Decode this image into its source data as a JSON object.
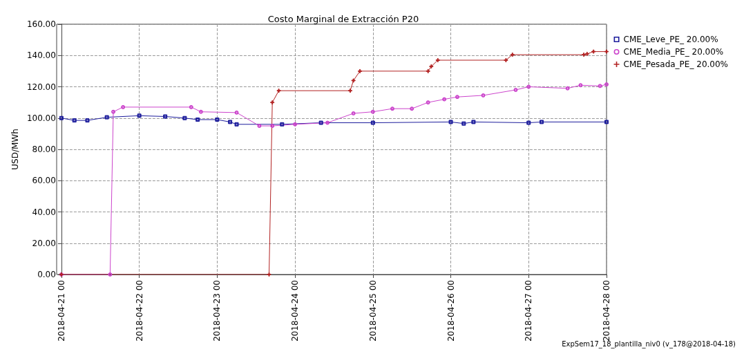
{
  "chart_data": {
    "type": "line",
    "title": "Costo Marginal de Extracción P20",
    "ylabel": "USD/MWh",
    "annotations": [
      "ExpSem17_18_plantilla_niv0 (v_178@2018-04-18)"
    ],
    "xlim": [
      "2018-04-21T00:00",
      "2018-04-28T00:00"
    ],
    "xticks": [
      {
        "value": "2018-04-21T00:00",
        "label": "2018-04-21 00"
      },
      {
        "value": "2018-04-22T00:00",
        "label": "2018-04-22 00"
      },
      {
        "value": "2018-04-23T00:00",
        "label": "2018-04-23 00"
      },
      {
        "value": "2018-04-24T00:00",
        "label": "2018-04-24 00"
      },
      {
        "value": "2018-04-25T00:00",
        "label": "2018-04-25 00"
      },
      {
        "value": "2018-04-26T00:00",
        "label": "2018-04-26 00"
      },
      {
        "value": "2018-04-27T00:00",
        "label": "2018-04-27 00"
      },
      {
        "value": "2018-04-28T00:00",
        "label": "2018-04-28 00"
      }
    ],
    "ylim": [
      0,
      160
    ],
    "yticks": [
      {
        "value": 0,
        "label": "0.00"
      },
      {
        "value": 20,
        "label": "20.00"
      },
      {
        "value": 40,
        "label": "40.00"
      },
      {
        "value": 60,
        "label": "60.00"
      },
      {
        "value": 80,
        "label": "80.00"
      },
      {
        "value": 100,
        "label": "100.00"
      },
      {
        "value": 120,
        "label": "120.00"
      },
      {
        "value": 140,
        "label": "140.00"
      },
      {
        "value": 160,
        "label": "160.00"
      }
    ],
    "grid": true,
    "legend": "right",
    "line_style": "solid",
    "series": [
      {
        "name": "CME_Leve_PE_ 20.00%",
        "color": "#1c1c9c",
        "marker": "square",
        "x": [
          "2018-04-21T00:00",
          "2018-04-21T04:00",
          "2018-04-21T08:00",
          "2018-04-21T14:00",
          "2018-04-22T00:00",
          "2018-04-22T08:00",
          "2018-04-22T14:00",
          "2018-04-22T18:00",
          "2018-04-23T00:00",
          "2018-04-23T04:00",
          "2018-04-23T06:00",
          "2018-04-23T20:00",
          "2018-04-24T08:00",
          "2018-04-25T00:00",
          "2018-04-26T00:00",
          "2018-04-26T04:00",
          "2018-04-26T07:00",
          "2018-04-27T00:00",
          "2018-04-27T04:00",
          "2018-04-28T00:00"
        ],
        "values": [
          100,
          98.5,
          98.5,
          100.5,
          101.5,
          101,
          100,
          99,
          99,
          97.5,
          96,
          96,
          97,
          97,
          97.5,
          96.5,
          97.5,
          97,
          97.5,
          97.5
        ]
      },
      {
        "name": "CME_Media_PE_ 20.00%",
        "color": "#cc44cc",
        "marker": "circle",
        "x": [
          "2018-04-21T00:00",
          "2018-04-21T15:00",
          "2018-04-21T16:00",
          "2018-04-21T19:00",
          "2018-04-22T16:00",
          "2018-04-22T19:00",
          "2018-04-23T06:00",
          "2018-04-23T13:00",
          "2018-04-23T17:00",
          "2018-04-24T00:00",
          "2018-04-24T10:00",
          "2018-04-24T18:00",
          "2018-04-25T00:00",
          "2018-04-25T06:00",
          "2018-04-25T12:00",
          "2018-04-25T17:00",
          "2018-04-25T22:00",
          "2018-04-26T02:00",
          "2018-04-26T10:00",
          "2018-04-26T20:00",
          "2018-04-27T00:00",
          "2018-04-27T12:00",
          "2018-04-27T16:00",
          "2018-04-27T22:00",
          "2018-04-28T00:00"
        ],
        "values": [
          0,
          0,
          104,
          107,
          107,
          104,
          103.5,
          95,
          95,
          96,
          97,
          103,
          104,
          106,
          106,
          110,
          112,
          113.5,
          114.5,
          118,
          120,
          119,
          121,
          120.5,
          121.5
        ]
      },
      {
        "name": "CME_Pesada_PE_ 20.00%",
        "color": "#b22222",
        "marker": "cross",
        "x": [
          "2018-04-21T00:00",
          "2018-04-23T16:00",
          "2018-04-23T17:00",
          "2018-04-23T19:00",
          "2018-04-24T17:00",
          "2018-04-24T18:00",
          "2018-04-24T20:00",
          "2018-04-25T17:00",
          "2018-04-25T18:00",
          "2018-04-25T20:00",
          "2018-04-26T17:00",
          "2018-04-26T19:00",
          "2018-04-27T17:00",
          "2018-04-27T18:00",
          "2018-04-27T20:00",
          "2018-04-28T00:00"
        ],
        "values": [
          0,
          0,
          110,
          117.5,
          117.5,
          124,
          130,
          130,
          133,
          137,
          137,
          140.5,
          140.5,
          141,
          142.5,
          142.5
        ]
      }
    ]
  }
}
